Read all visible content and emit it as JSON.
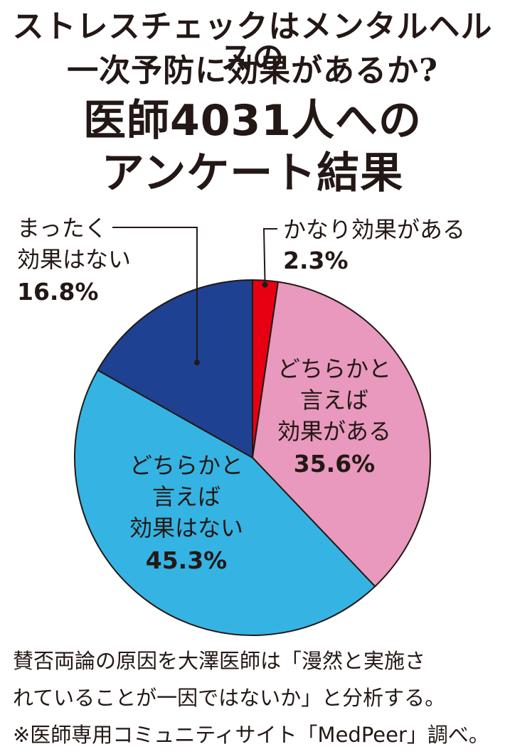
{
  "header": {
    "question_line1": "ストレスチェックはメンタルヘルスの",
    "question_line2": "一次予防に効果があるか?",
    "title_line1": "医師4031人への",
    "title_line2": "アンケート結果"
  },
  "chart_data": {
    "type": "pie",
    "start": "12 o'clock, clockwise",
    "slices": [
      {
        "label_lines": [
          "かなり効果がある"
        ],
        "value": 2.3,
        "value_label": "2.3%",
        "color": "#e60012"
      },
      {
        "label_lines": [
          "どちらかと",
          "言えば",
          "効果がある"
        ],
        "value": 35.6,
        "value_label": "35.6%",
        "color": "#e899bd"
      },
      {
        "label_lines": [
          "どちらかと",
          "言えば",
          "効果はない"
        ],
        "value": 45.3,
        "value_label": "45.3%",
        "color": "#35b4e3"
      },
      {
        "label_lines": [
          "まったく",
          "効果はない"
        ],
        "value": 16.8,
        "value_label": "16.8%",
        "color": "#1e4191"
      }
    ]
  },
  "footer": {
    "line1": "賛否両論の原因を大澤医師は「漫然と実施さ",
    "line2": "れていることが一因ではないか」と分析する。",
    "line3": "※医師専用コミュニティサイト「MedPeer」調べ。"
  }
}
